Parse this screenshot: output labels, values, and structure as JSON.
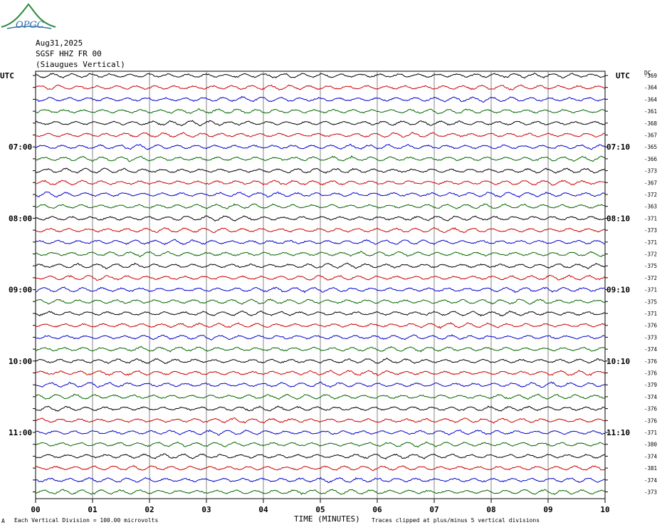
{
  "header": {
    "date": "Aug31,2025",
    "station": "SGSF HHZ FR 00",
    "location": "(Siaugues Vertical)",
    "logo_text": "OPGC"
  },
  "labels": {
    "left_utc": "UTC",
    "right_utc": "UTC",
    "dc": "DC"
  },
  "chart_data": {
    "type": "line",
    "title": "",
    "xlabel": "TIME (MINUTES)",
    "ylabel": "",
    "xlim": [
      0,
      10
    ],
    "x_ticks": [
      "00",
      "01",
      "02",
      "03",
      "04",
      "05",
      "06",
      "07",
      "08",
      "09",
      "10"
    ],
    "grid": true,
    "trace_count": 36,
    "trace_colors": [
      "#000000",
      "#cc0000",
      "#0000cc",
      "#006600"
    ],
    "left_hour_labels": [
      {
        "row": 6,
        "label": "07:00"
      },
      {
        "row": 12,
        "label": "08:00"
      },
      {
        "row": 18,
        "label": "09:00"
      },
      {
        "row": 24,
        "label": "10:00"
      },
      {
        "row": 30,
        "label": "11:00"
      }
    ],
    "right_hour_labels": [
      {
        "row": 6,
        "label": "07:10"
      },
      {
        "row": 12,
        "label": "08:10"
      },
      {
        "row": 18,
        "label": "09:10"
      },
      {
        "row": 24,
        "label": "10:10"
      },
      {
        "row": 30,
        "label": "11:10"
      }
    ],
    "dc_offsets": [
      "-369",
      "-364",
      "-364",
      "-361",
      "-368",
      "-367",
      "-365",
      "-366",
      "-373",
      "-367",
      "-372",
      "-363",
      "-371",
      "-373",
      "-371",
      "-372",
      "-375",
      "-372",
      "-371",
      "-375",
      "-371",
      "-376",
      "-373",
      "-374",
      "-376",
      "-376",
      "-379",
      "-374",
      "-376",
      "-376",
      "-371",
      "-380",
      "-374",
      "-381",
      "-374",
      "-373"
    ]
  },
  "footer": {
    "scale": "Each Vertical Division =  100.00 microvolts",
    "clip_note": "Traces clipped at plus/minus 5 vertical divisions",
    "corner_mark": "A"
  }
}
